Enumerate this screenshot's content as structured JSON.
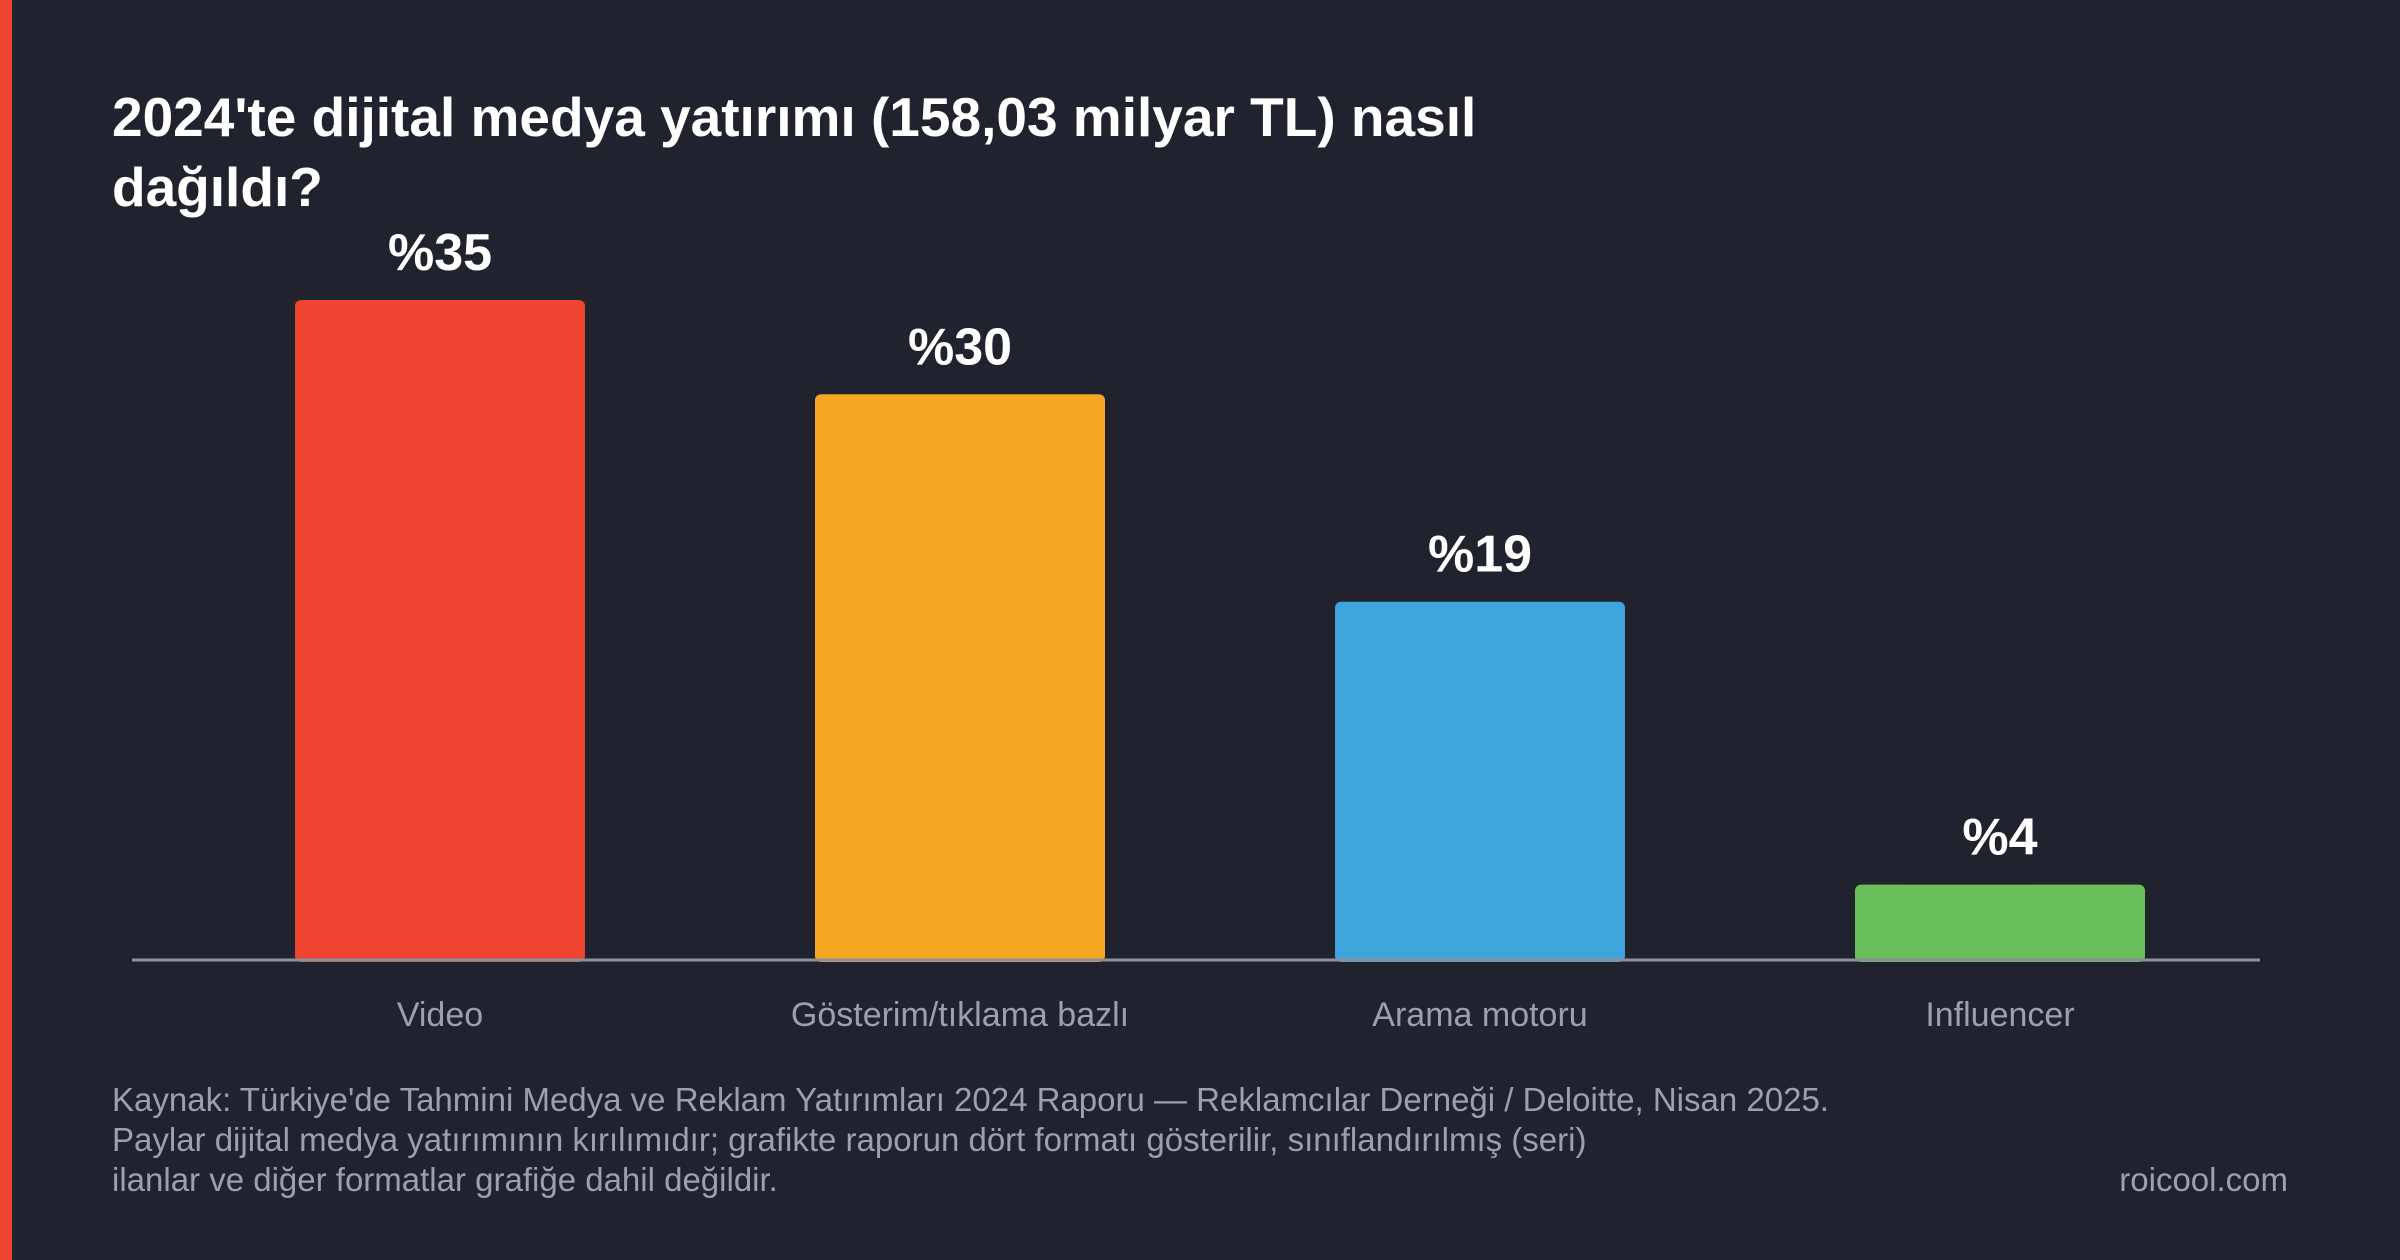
{
  "chart_data": {
    "type": "bar",
    "title": "2024'te dijital medya yatırımı (158,03 milyar TL) nasıl dağıldı?",
    "categories": [
      "Video",
      "Gösterim/tıklama bazlı",
      "Arama motoru",
      "Influencer"
    ],
    "values": [
      35,
      30,
      19,
      4
    ],
    "value_labels": [
      "%35",
      "%30",
      "%19",
      "%4"
    ],
    "colors": [
      "#ef4530",
      "#f5a623",
      "#3da5dc",
      "#69bf5a"
    ],
    "xlabel": "",
    "ylabel": "",
    "ylim": [
      0,
      35
    ],
    "grid": false,
    "legend": "none"
  },
  "footer": {
    "source_lines": [
      "Kaynak: Türkiye'de Tahmini Medya ve Reklam Yatırımları 2024 Raporu — Reklamcılar Derneği / Deloitte, Nisan 2025.",
      "Paylar dijital medya yatırımının kırılımıdır; grafikte raporun dört formatı gösterilir, sınıflandırılmış (seri)",
      "ilanlar ve diğer formatlar grafiğe dahil değildir."
    ],
    "brand": "roicool.com"
  },
  "colors": {
    "background": "#20232e",
    "accent": "#ef4530",
    "axis": "#8a909c",
    "text_muted": "#9aa1ad"
  }
}
